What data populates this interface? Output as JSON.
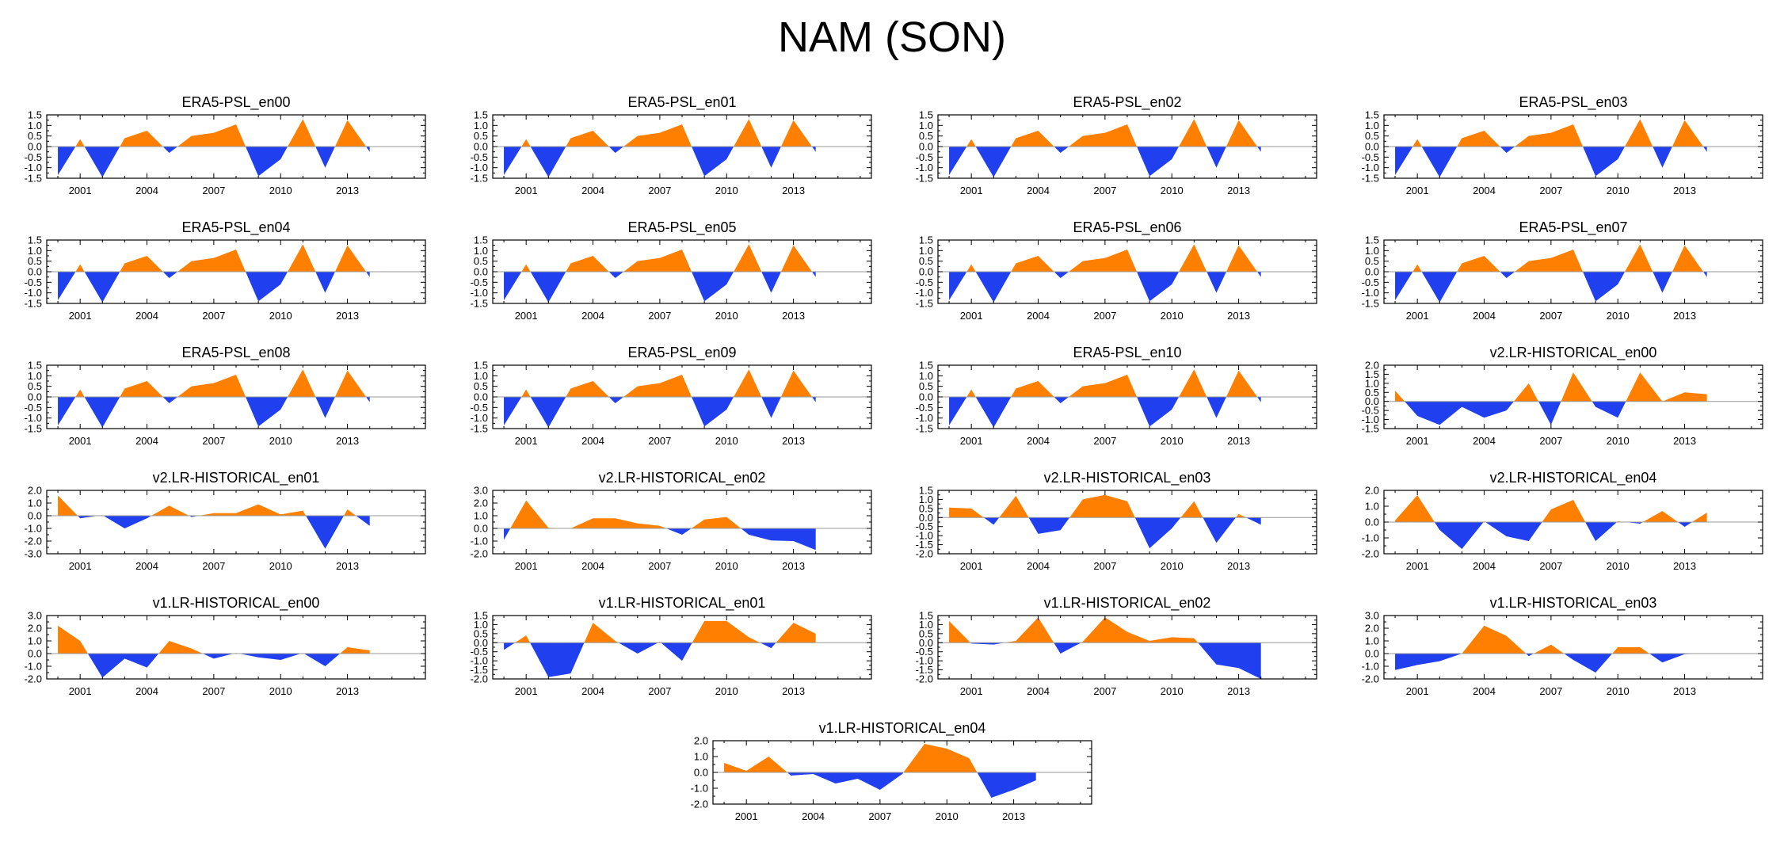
{
  "title": "NAM (SON)",
  "chart_data": {
    "type": "area",
    "title": "NAM (SON)",
    "x": [
      2000,
      2001,
      2002,
      2003,
      2004,
      2005,
      2006,
      2007,
      2008,
      2009,
      2010,
      2011,
      2012,
      2013,
      2014
    ],
    "xlim": [
      1999.5,
      2016.5
    ],
    "xticks": [
      2001,
      2004,
      2007,
      2010,
      2013
    ],
    "colors": {
      "positive": "#ff8000",
      "negative": "#2040f0",
      "axis": "#000000",
      "zeroline": "#999999"
    },
    "panels": [
      {
        "title": "ERA5-PSL_en00",
        "ylim": [
          -1.5,
          1.5
        ],
        "yticks": [
          "1.5",
          "1.0",
          "0.5",
          "0.0",
          "-0.5",
          "-1.0",
          "-1.5"
        ],
        "values": [
          -1.35,
          0.35,
          -1.45,
          0.4,
          0.75,
          -0.3,
          0.5,
          0.65,
          1.05,
          -1.4,
          -0.6,
          1.3,
          -1.0,
          1.25,
          -0.25
        ]
      },
      {
        "title": "ERA5-PSL_en01",
        "ylim": [
          -1.5,
          1.5
        ],
        "yticks": [
          "1.5",
          "1.0",
          "0.5",
          "0.0",
          "-0.5",
          "-1.0",
          "-1.5"
        ],
        "values": [
          -1.35,
          0.35,
          -1.45,
          0.4,
          0.75,
          -0.3,
          0.5,
          0.65,
          1.05,
          -1.4,
          -0.6,
          1.3,
          -1.0,
          1.25,
          -0.25
        ]
      },
      {
        "title": "ERA5-PSL_en02",
        "ylim": [
          -1.5,
          1.5
        ],
        "yticks": [
          "1.5",
          "1.0",
          "0.5",
          "0.0",
          "-0.5",
          "-1.0",
          "-1.5"
        ],
        "values": [
          -1.35,
          0.35,
          -1.45,
          0.4,
          0.75,
          -0.3,
          0.5,
          0.65,
          1.05,
          -1.4,
          -0.6,
          1.3,
          -1.0,
          1.25,
          -0.25
        ]
      },
      {
        "title": "ERA5-PSL_en03",
        "ylim": [
          -1.5,
          1.5
        ],
        "yticks": [
          "1.5",
          "1.0",
          "0.5",
          "0.0",
          "-0.5",
          "-1.0",
          "-1.5"
        ],
        "values": [
          -1.35,
          0.35,
          -1.45,
          0.4,
          0.75,
          -0.3,
          0.5,
          0.65,
          1.05,
          -1.4,
          -0.6,
          1.3,
          -1.0,
          1.25,
          -0.25
        ]
      },
      {
        "title": "ERA5-PSL_en04",
        "ylim": [
          -1.5,
          1.5
        ],
        "yticks": [
          "1.5",
          "1.0",
          "0.5",
          "0.0",
          "-0.5",
          "-1.0",
          "-1.5"
        ],
        "values": [
          -1.35,
          0.35,
          -1.45,
          0.4,
          0.75,
          -0.3,
          0.5,
          0.65,
          1.05,
          -1.4,
          -0.6,
          1.3,
          -1.0,
          1.25,
          -0.25
        ]
      },
      {
        "title": "ERA5-PSL_en05",
        "ylim": [
          -1.5,
          1.5
        ],
        "yticks": [
          "1.5",
          "1.0",
          "0.5",
          "0.0",
          "-0.5",
          "-1.0",
          "-1.5"
        ],
        "values": [
          -1.35,
          0.35,
          -1.45,
          0.4,
          0.75,
          -0.3,
          0.5,
          0.65,
          1.05,
          -1.4,
          -0.6,
          1.3,
          -1.0,
          1.25,
          -0.25
        ]
      },
      {
        "title": "ERA5-PSL_en06",
        "ylim": [
          -1.5,
          1.5
        ],
        "yticks": [
          "1.5",
          "1.0",
          "0.5",
          "0.0",
          "-0.5",
          "-1.0",
          "-1.5"
        ],
        "values": [
          -1.35,
          0.35,
          -1.45,
          0.4,
          0.75,
          -0.3,
          0.5,
          0.65,
          1.05,
          -1.4,
          -0.6,
          1.3,
          -1.0,
          1.25,
          -0.25
        ]
      },
      {
        "title": "ERA5-PSL_en07",
        "ylim": [
          -1.5,
          1.5
        ],
        "yticks": [
          "1.5",
          "1.0",
          "0.5",
          "0.0",
          "-0.5",
          "-1.0",
          "-1.5"
        ],
        "values": [
          -1.35,
          0.35,
          -1.45,
          0.4,
          0.75,
          -0.3,
          0.5,
          0.65,
          1.05,
          -1.4,
          -0.6,
          1.3,
          -1.0,
          1.25,
          -0.25
        ]
      },
      {
        "title": "ERA5-PSL_en08",
        "ylim": [
          -1.5,
          1.5
        ],
        "yticks": [
          "1.5",
          "1.0",
          "0.5",
          "0.0",
          "-0.5",
          "-1.0",
          "-1.5"
        ],
        "values": [
          -1.35,
          0.35,
          -1.45,
          0.4,
          0.75,
          -0.3,
          0.5,
          0.65,
          1.05,
          -1.4,
          -0.6,
          1.3,
          -1.0,
          1.25,
          -0.25
        ]
      },
      {
        "title": "ERA5-PSL_en09",
        "ylim": [
          -1.5,
          1.5
        ],
        "yticks": [
          "1.5",
          "1.0",
          "0.5",
          "0.0",
          "-0.5",
          "-1.0",
          "-1.5"
        ],
        "values": [
          -1.35,
          0.35,
          -1.45,
          0.4,
          0.75,
          -0.3,
          0.5,
          0.65,
          1.05,
          -1.4,
          -0.6,
          1.3,
          -1.0,
          1.25,
          -0.25
        ]
      },
      {
        "title": "ERA5-PSL_en10",
        "ylim": [
          -1.5,
          1.5
        ],
        "yticks": [
          "1.5",
          "1.0",
          "0.5",
          "0.0",
          "-0.5",
          "-1.0",
          "-1.5"
        ],
        "values": [
          -1.35,
          0.35,
          -1.45,
          0.4,
          0.75,
          -0.3,
          0.5,
          0.65,
          1.05,
          -1.4,
          -0.6,
          1.3,
          -1.0,
          1.25,
          -0.25
        ]
      },
      {
        "title": "v2.LR-HISTORICAL_en00",
        "ylim": [
          -1.5,
          2.0
        ],
        "yticks": [
          "2.0",
          "1.5",
          "1.0",
          "0.5",
          "0.0",
          "-0.5",
          "-1.0",
          "-1.5"
        ],
        "values": [
          0.6,
          -0.8,
          -1.3,
          -0.3,
          -0.9,
          -0.5,
          1.0,
          -1.3,
          1.6,
          -0.3,
          -0.9,
          1.6,
          0.0,
          0.5,
          0.4
        ]
      },
      {
        "title": "v2.LR-HISTORICAL_en01",
        "ylim": [
          -3.0,
          2.0
        ],
        "yticks": [
          "2.0",
          "1.0",
          "0.0",
          "-1.0",
          "-2.0",
          "-3.0"
        ],
        "values": [
          1.6,
          -0.2,
          0.05,
          -1.0,
          -0.2,
          0.8,
          -0.1,
          0.2,
          0.2,
          0.9,
          0.1,
          0.4,
          -2.6,
          0.5,
          -0.8
        ]
      },
      {
        "title": "v2.LR-HISTORICAL_en02",
        "ylim": [
          -2.0,
          3.0
        ],
        "yticks": [
          "3.0",
          "2.0",
          "1.0",
          "0.0",
          "-1.0",
          "-2.0"
        ],
        "values": [
          -0.9,
          2.2,
          0.05,
          0.0,
          0.8,
          0.8,
          0.4,
          0.2,
          -0.5,
          0.7,
          0.9,
          -0.5,
          -0.95,
          -1.0,
          -1.7
        ]
      },
      {
        "title": "v2.LR-HISTORICAL_en03",
        "ylim": [
          -2.0,
          1.5
        ],
        "yticks": [
          "1.5",
          "1.0",
          "0.5",
          "0.0",
          "-0.5",
          "-1.0",
          "-1.5",
          "-2.0"
        ],
        "values": [
          0.55,
          0.5,
          -0.4,
          1.2,
          -0.9,
          -0.7,
          1.0,
          1.25,
          0.9,
          -1.7,
          -0.6,
          0.9,
          -1.4,
          0.2,
          -0.4
        ]
      },
      {
        "title": "v2.LR-HISTORICAL_en04",
        "ylim": [
          -2.0,
          2.0
        ],
        "yticks": [
          "2.0",
          "1.0",
          "0.0",
          "-1.0",
          "-2.0"
        ],
        "values": [
          0.1,
          1.7,
          -0.5,
          -1.7,
          0.05,
          -0.9,
          -1.2,
          0.8,
          1.4,
          -1.2,
          0.05,
          -0.1,
          0.7,
          -0.3,
          0.6
        ]
      },
      {
        "title": "v1.LR-HISTORICAL_en00",
        "ylim": [
          -2.0,
          3.0
        ],
        "yticks": [
          "3.0",
          "2.0",
          "1.0",
          "0.0",
          "-1.0",
          "-2.0"
        ],
        "values": [
          2.2,
          1.0,
          -1.9,
          -0.4,
          -1.1,
          1.0,
          0.4,
          -0.4,
          0.05,
          -0.3,
          -0.5,
          0.05,
          -1.0,
          0.5,
          0.25
        ]
      },
      {
        "title": "v1.LR-HISTORICAL_en01",
        "ylim": [
          -2.0,
          1.5
        ],
        "yticks": [
          "1.5",
          "1.0",
          "0.5",
          "0.0",
          "-0.5",
          "-1.0",
          "-1.5",
          "-2.0"
        ],
        "values": [
          -0.4,
          0.4,
          -1.9,
          -1.7,
          1.1,
          0.1,
          -0.6,
          0.05,
          -1.0,
          1.2,
          1.2,
          0.3,
          -0.3,
          1.1,
          0.5
        ]
      },
      {
        "title": "v1.LR-HISTORICAL_en02",
        "ylim": [
          -2.0,
          1.5
        ],
        "yticks": [
          "1.5",
          "1.0",
          "0.5",
          "0.0",
          "-0.5",
          "-1.0",
          "-1.5",
          "-2.0"
        ],
        "values": [
          1.2,
          -0.05,
          -0.1,
          0.1,
          1.4,
          -0.6,
          0.05,
          1.4,
          0.6,
          0.1,
          0.3,
          0.25,
          -1.2,
          -1.4,
          -2.0
        ]
      },
      {
        "title": "v1.LR-HISTORICAL_en03",
        "ylim": [
          -2.0,
          3.0
        ],
        "yticks": [
          "3.0",
          "2.0",
          "1.0",
          "0.0",
          "-1.0",
          "-2.0"
        ],
        "values": [
          -1.3,
          -0.9,
          -0.6,
          0.0,
          2.2,
          1.4,
          -0.2,
          0.7,
          -0.5,
          -1.5,
          0.5,
          0.5,
          -0.7,
          -0.05,
          0.0
        ]
      },
      {
        "title": "v1.LR-HISTORICAL_en04",
        "ylim": [
          -2.0,
          2.0
        ],
        "yticks": [
          "2.0",
          "1.0",
          "0.0",
          "-1.0",
          "-2.0"
        ],
        "values": [
          0.6,
          0.1,
          1.0,
          -0.2,
          -0.1,
          -0.7,
          -0.4,
          -1.1,
          -0.1,
          1.8,
          1.5,
          0.9,
          -1.6,
          -1.1,
          -0.5
        ]
      }
    ]
  }
}
